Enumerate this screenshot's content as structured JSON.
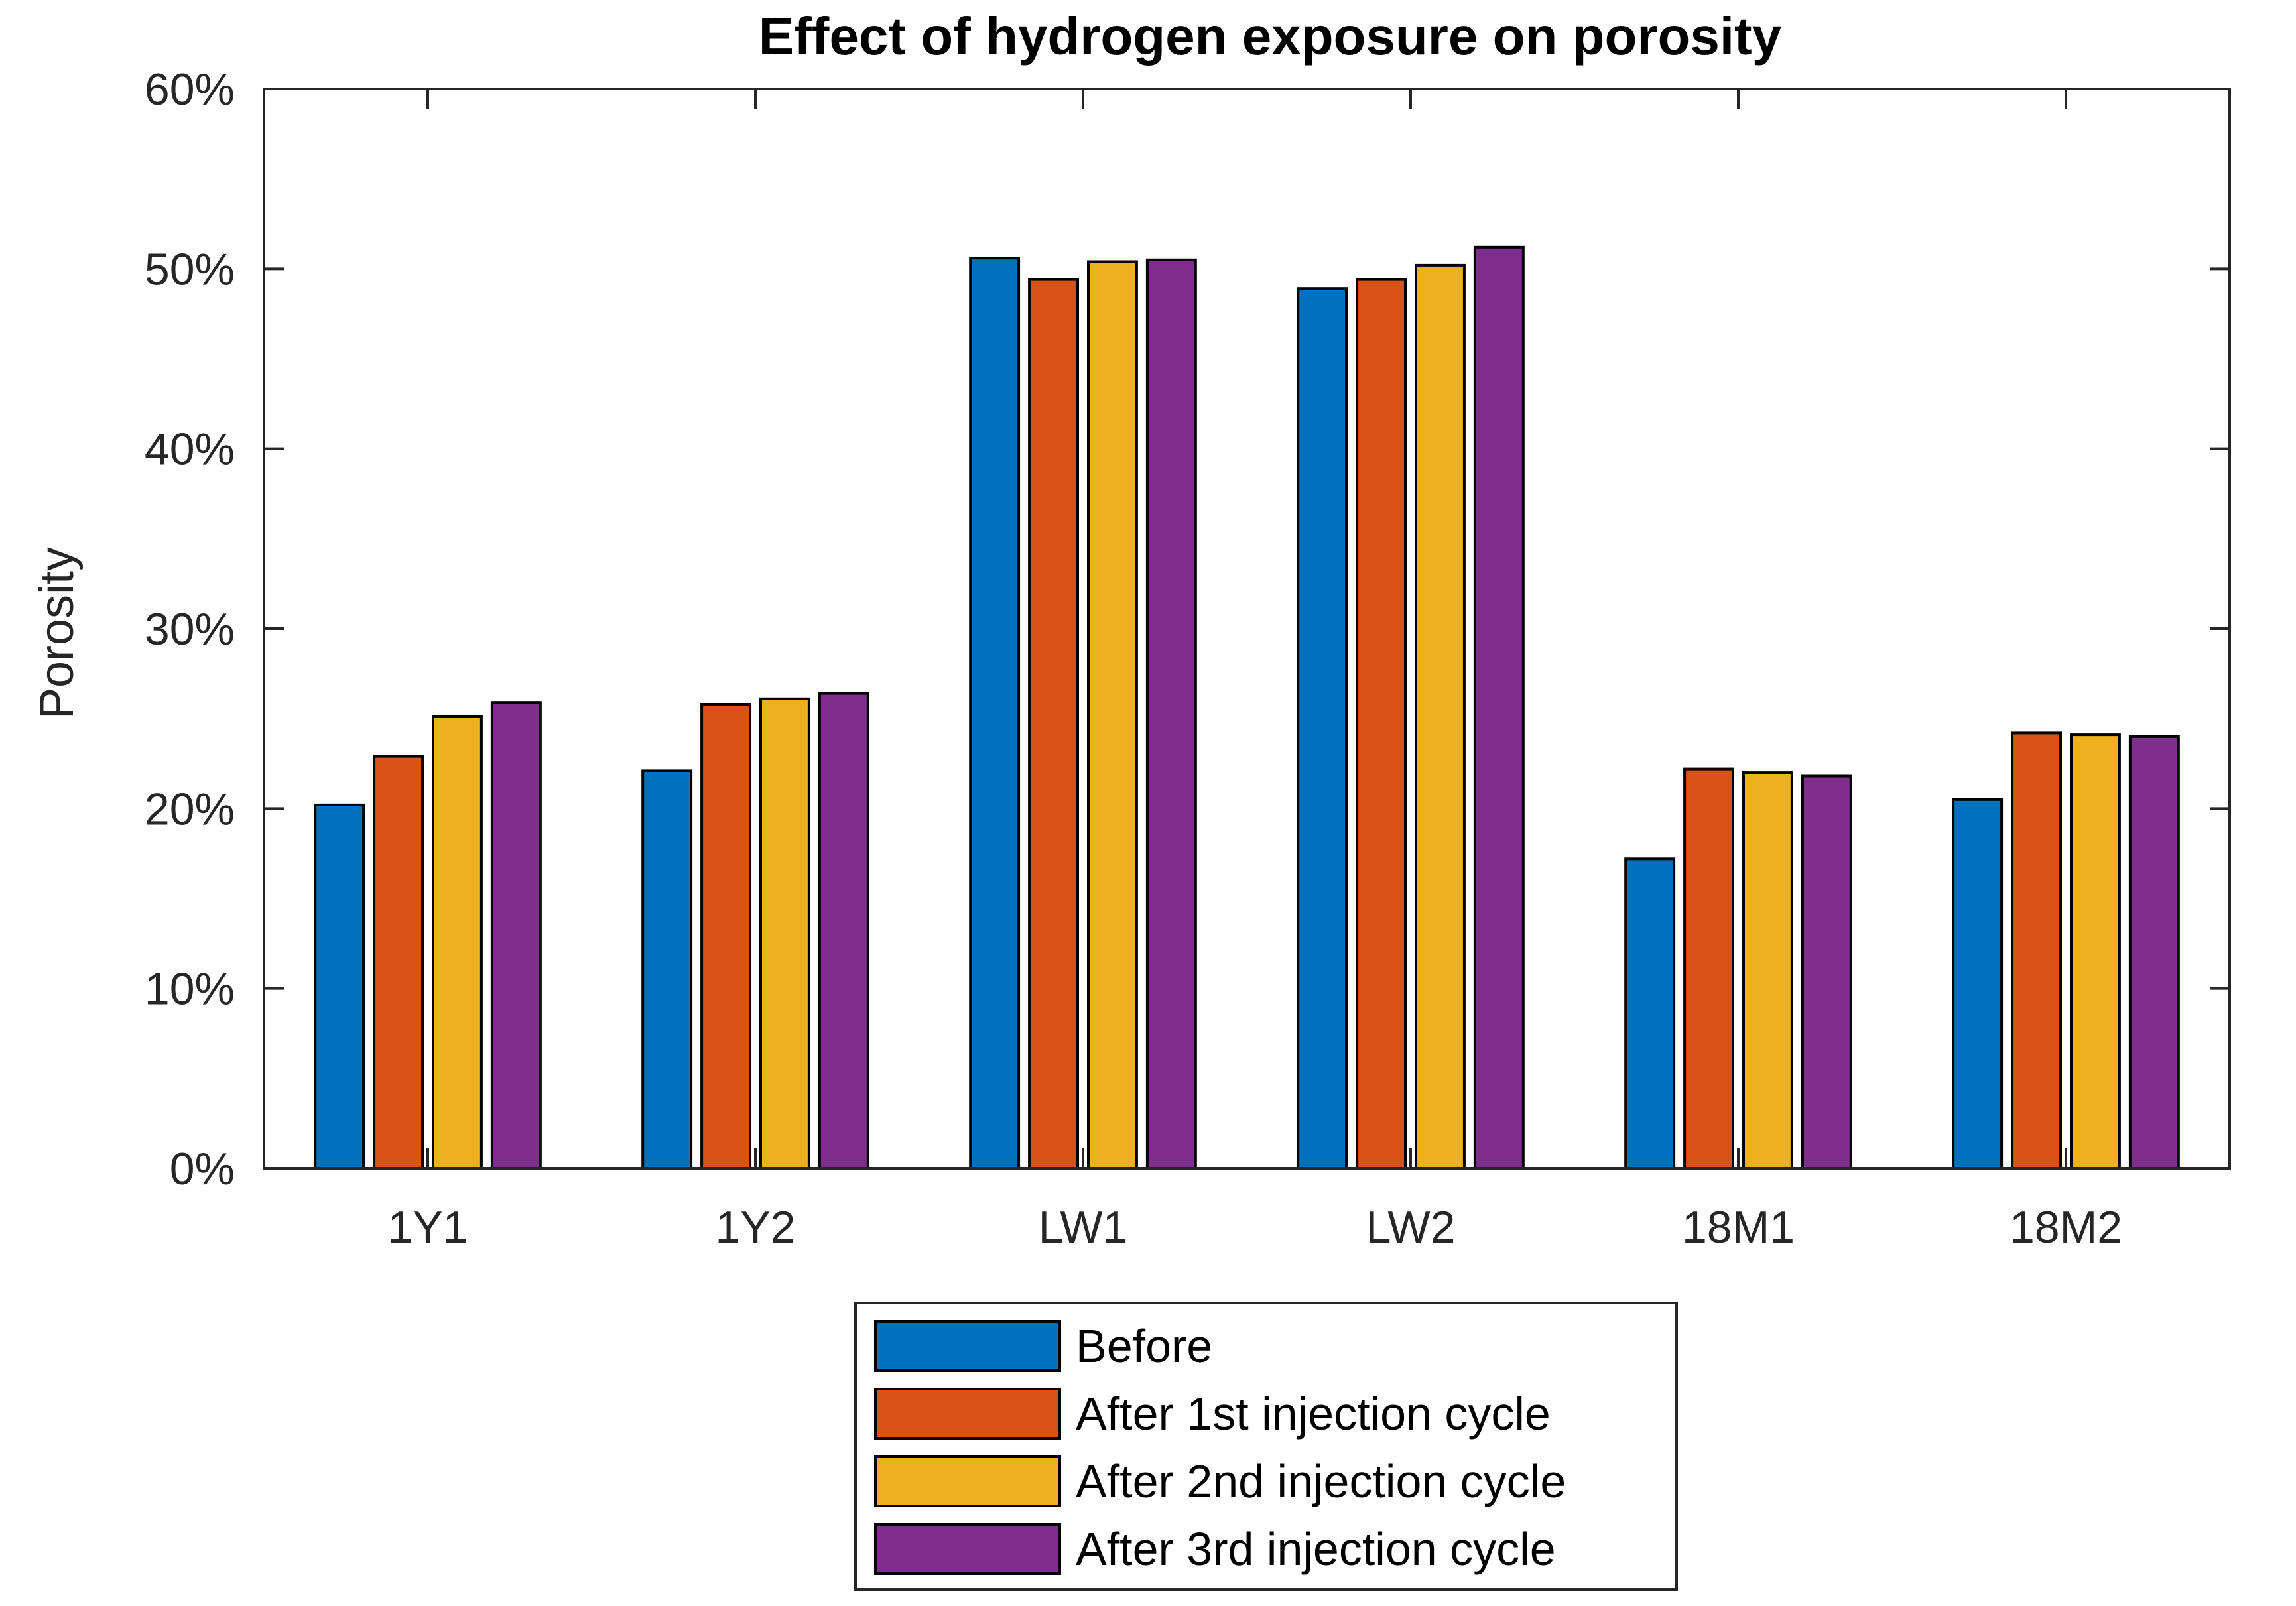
{
  "chart_data": {
    "type": "bar",
    "title": "Effect of hydrogen exposure on porosity",
    "xlabel": "",
    "ylabel": "Porosity",
    "ylim": [
      0,
      60
    ],
    "yticks": [
      0,
      10,
      20,
      30,
      40,
      50,
      60
    ],
    "ytick_labels": [
      "0%",
      "10%",
      "20%",
      "30%",
      "40%",
      "50%",
      "60%"
    ],
    "categories": [
      "1Y1",
      "1Y2",
      "LW1",
      "LW2",
      "18M1",
      "18M2"
    ],
    "grid": false,
    "legend_position": "bottom-center",
    "series": [
      {
        "name": "Before",
        "color": "#0072BD",
        "values": [
          20.2,
          22.1,
          50.6,
          48.9,
          17.2,
          20.5
        ]
      },
      {
        "name": "After 1st injection cycle",
        "color": "#D95319",
        "values": [
          22.9,
          25.8,
          49.4,
          49.4,
          22.2,
          24.2
        ]
      },
      {
        "name": "After 2nd injection cycle",
        "color": "#EDB120",
        "values": [
          25.1,
          26.1,
          50.4,
          50.2,
          22.0,
          24.1
        ]
      },
      {
        "name": "After 3rd injection cycle",
        "color": "#7E2F8E",
        "values": [
          25.9,
          26.4,
          50.5,
          51.2,
          21.8,
          24.0
        ]
      }
    ]
  }
}
